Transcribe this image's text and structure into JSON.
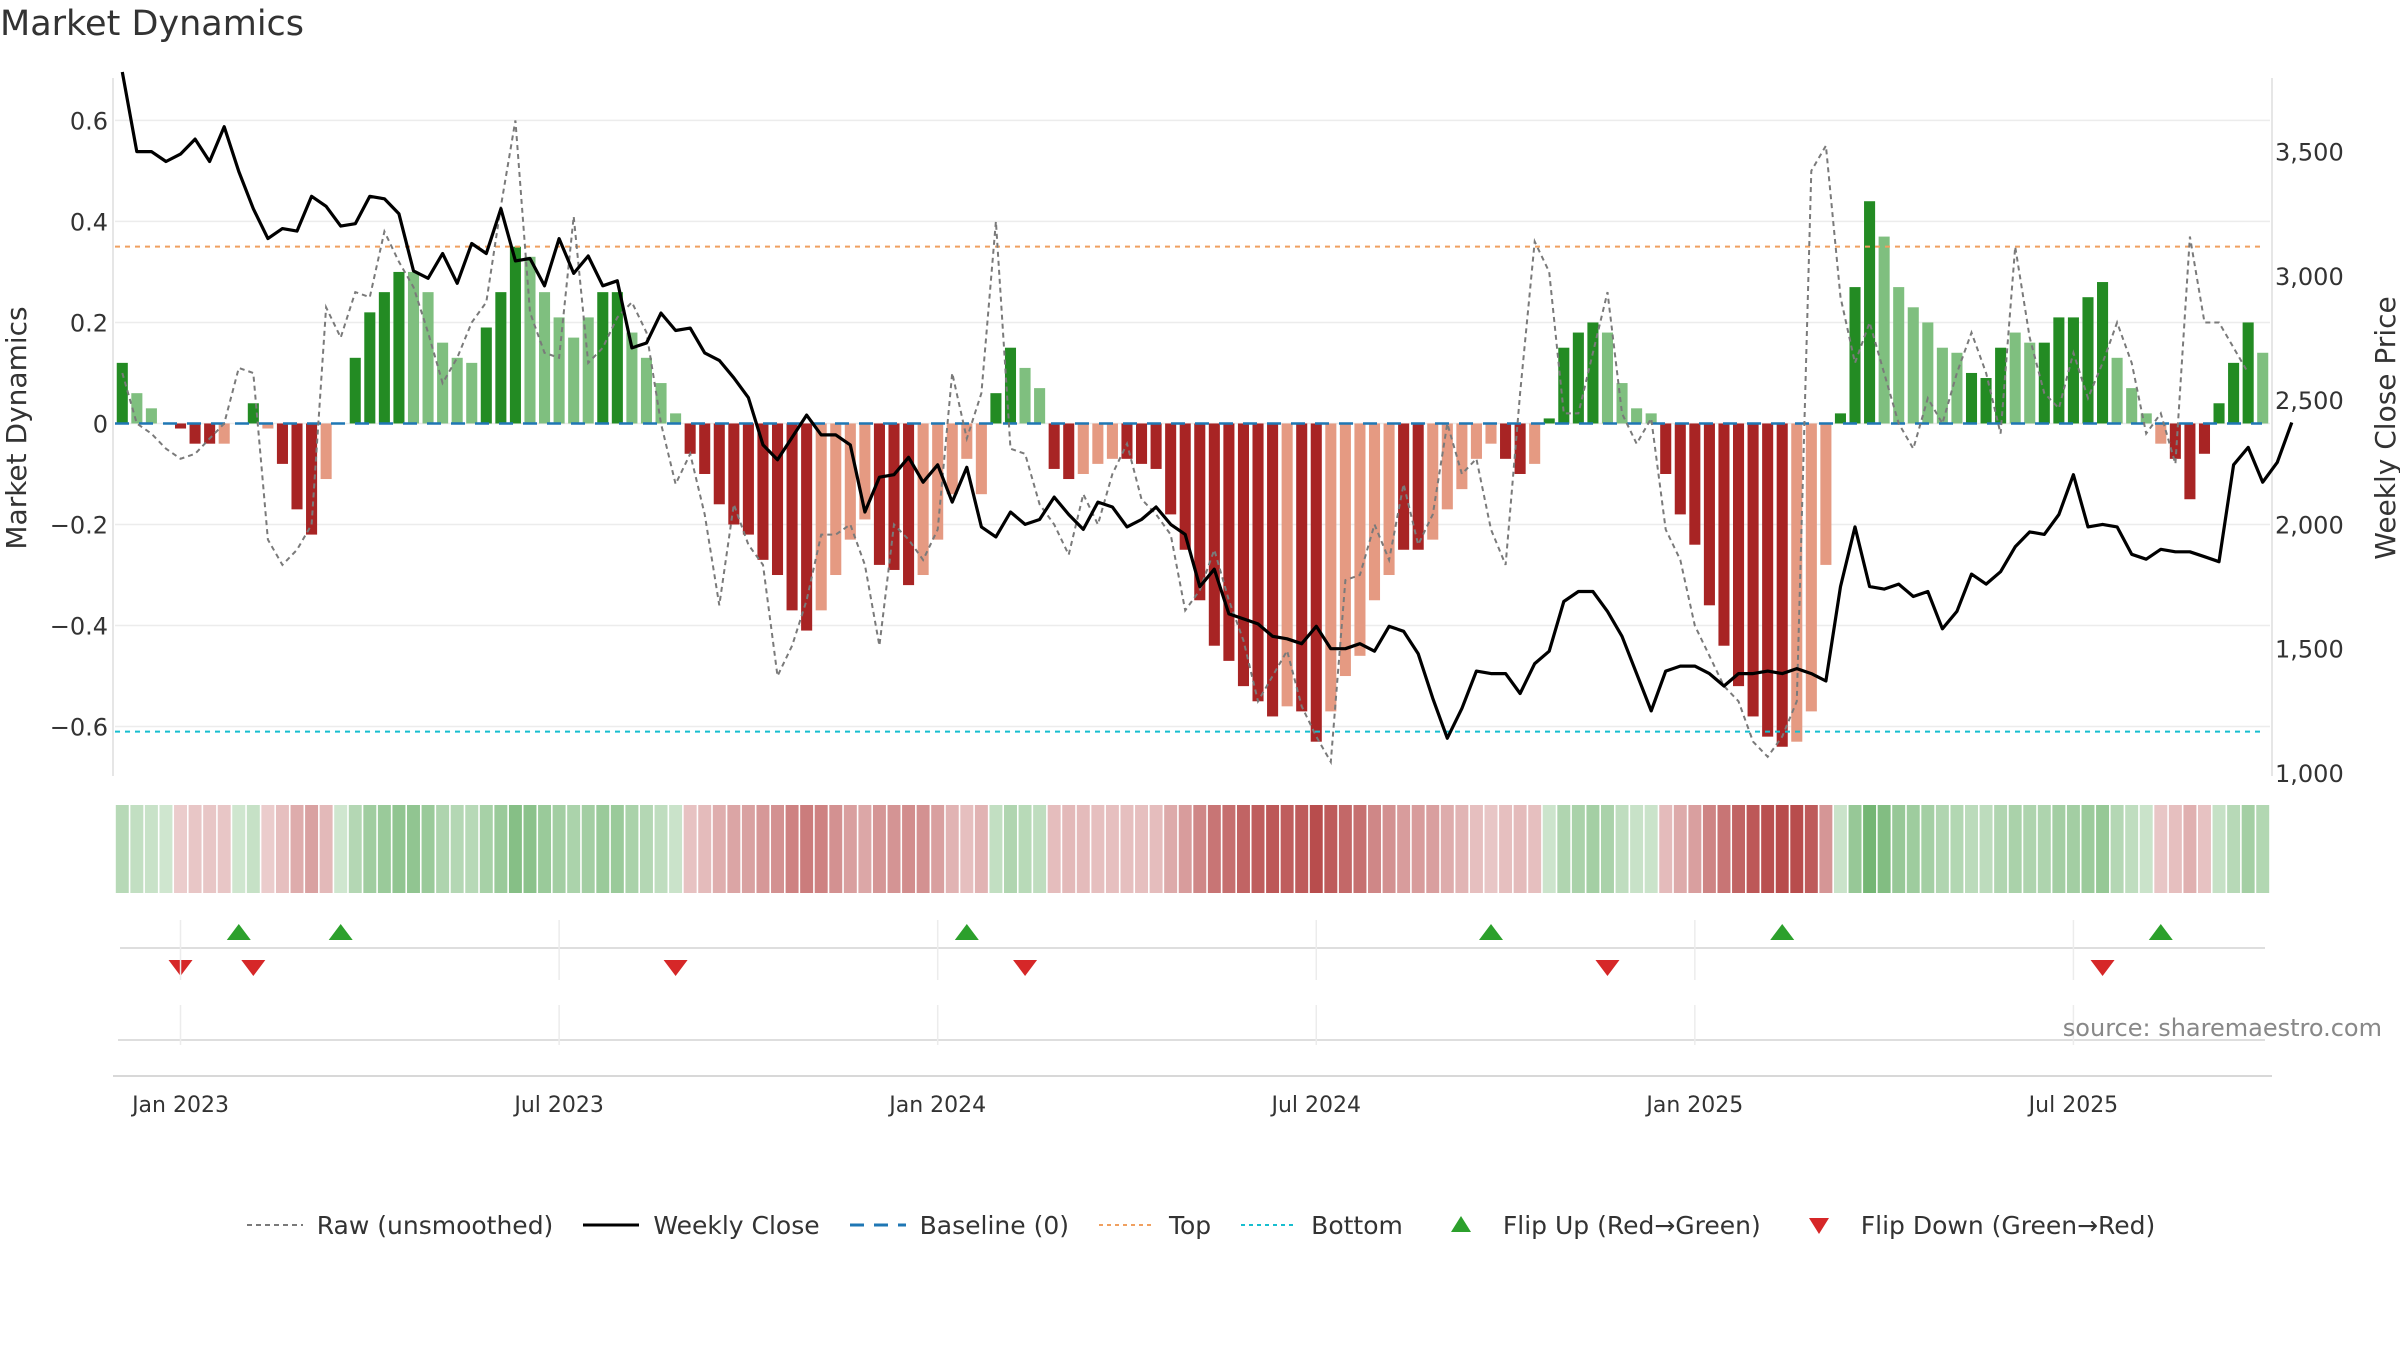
{
  "title": "Market Dynamics",
  "source_text": "source: sharemaestro.com",
  "colors": {
    "green_strong": "#238b23",
    "green_light": "#7fbf7f",
    "red_strong": "#a82424",
    "red_light": "#e59a82",
    "raw_line": "#7a7a7a",
    "close_line": "#000000",
    "baseline": "#1f77b4",
    "top": "#f0a060",
    "bottom": "#17becf",
    "flip_up": "#2ca02c",
    "flip_down": "#d62728"
  },
  "legend": [
    {
      "key": "raw",
      "label": "Raw (unsmoothed)"
    },
    {
      "key": "close",
      "label": "Weekly Close"
    },
    {
      "key": "baseline",
      "label": "Baseline (0)"
    },
    {
      "key": "top",
      "label": "Top"
    },
    {
      "key": "bottom",
      "label": "Bottom"
    },
    {
      "key": "flip_up",
      "label": "Flip Up (Red→Green)"
    },
    {
      "key": "flip_down",
      "label": "Flip Down (Green→Red)"
    }
  ],
  "chart_data": {
    "type": "bar",
    "ylabel_left": "Market Dynamics",
    "ylabel_right": "Weekly Close Price",
    "y_left_ticks": [
      0.6,
      0.4,
      0.2,
      0,
      -0.2,
      -0.4,
      -0.6
    ],
    "y_left_tick_labels": [
      "0.6",
      "0.4",
      "0.2",
      "0",
      "−0.2",
      "−0.4",
      "−0.6"
    ],
    "y_left_range": [
      -0.69,
      0.68
    ],
    "y_right_ticks": [
      3500,
      3000,
      2500,
      2000,
      1500,
      1000
    ],
    "y_right_tick_labels": [
      "3,500",
      "3,000",
      "2,500",
      "2,000",
      "1,500",
      "1,000"
    ],
    "y_right_range": [
      1000,
      3800
    ],
    "x_tick_labels": [
      "Jan 2023",
      "Jul 2023",
      "Jan 2024",
      "Jul 2024",
      "Jan 2025",
      "Jul 2025"
    ],
    "x_tick_weeks": [
      4,
      30,
      56,
      82,
      108,
      134
    ],
    "top_level": 0.35,
    "bottom_level": -0.61,
    "baseline": 0,
    "bar_values": [
      0.12,
      0.06,
      0.03,
      0,
      -0.01,
      -0.04,
      -0.04,
      -0.04,
      0,
      0.04,
      -0.01,
      -0.08,
      -0.17,
      -0.22,
      -0.11,
      0,
      0.13,
      0.22,
      0.26,
      0.3,
      0.3,
      0.26,
      0.16,
      0.13,
      0.12,
      0.19,
      0.26,
      0.35,
      0.33,
      0.26,
      0.21,
      0.17,
      0.21,
      0.26,
      0.26,
      0.18,
      0.13,
      0.08,
      0.02,
      -0.06,
      -0.1,
      -0.16,
      -0.2,
      -0.22,
      -0.27,
      -0.3,
      -0.37,
      -0.41,
      -0.37,
      -0.3,
      -0.23,
      -0.19,
      -0.28,
      -0.29,
      -0.32,
      -0.3,
      -0.23,
      -0.14,
      -0.07,
      -0.14,
      0.06,
      0.15,
      0.11,
      0.07,
      -0.09,
      -0.11,
      -0.1,
      -0.08,
      -0.07,
      -0.07,
      -0.08,
      -0.09,
      -0.18,
      -0.25,
      -0.35,
      -0.44,
      -0.47,
      -0.52,
      -0.55,
      -0.58,
      -0.56,
      -0.57,
      -0.63,
      -0.57,
      -0.5,
      -0.46,
      -0.35,
      -0.3,
      -0.25,
      -0.25,
      -0.23,
      -0.17,
      -0.13,
      -0.07,
      -0.04,
      -0.07,
      -0.1,
      -0.08,
      0.01,
      0.15,
      0.18,
      0.2,
      0.18,
      0.08,
      0.03,
      0.02,
      -0.1,
      -0.18,
      -0.24,
      -0.36,
      -0.44,
      -0.52,
      -0.58,
      -0.62,
      -0.64,
      -0.63,
      -0.57,
      -0.28,
      0.02,
      0.27,
      0.44,
      0.37,
      0.27,
      0.23,
      0.2,
      0.15,
      0.14,
      0.1,
      0.09,
      0.15,
      0.18,
      0.16,
      0.16,
      0.21,
      0.21,
      0.25,
      0.28,
      0.13,
      0.07,
      0.02,
      -0.04,
      -0.07,
      -0.15,
      -0.06,
      0.04,
      0.12,
      0.2,
      0.14
    ],
    "bar_intensity": [
      "strong",
      "light",
      "light",
      "light",
      "strong",
      "strong",
      "strong",
      "light",
      "strong",
      "strong",
      "light",
      "strong",
      "strong",
      "strong",
      "light",
      "light",
      "strong",
      "strong",
      "strong",
      "strong",
      "light",
      "light",
      "light",
      "light",
      "light",
      "strong",
      "strong",
      "strong",
      "light",
      "light",
      "light",
      "light",
      "light",
      "strong",
      "strong",
      "light",
      "light",
      "light",
      "light",
      "strong",
      "strong",
      "strong",
      "strong",
      "strong",
      "strong",
      "strong",
      "strong",
      "strong",
      "light",
      "light",
      "light",
      "light",
      "strong",
      "strong",
      "strong",
      "light",
      "light",
      "light",
      "light",
      "light",
      "strong",
      "strong",
      "light",
      "light",
      "strong",
      "strong",
      "light",
      "light",
      "light",
      "strong",
      "strong",
      "strong",
      "strong",
      "strong",
      "strong",
      "strong",
      "strong",
      "strong",
      "strong",
      "strong",
      "light",
      "strong",
      "strong",
      "light",
      "light",
      "light",
      "light",
      "light",
      "strong",
      "strong",
      "light",
      "light",
      "light",
      "light",
      "light",
      "strong",
      "strong",
      "light",
      "strong",
      "strong",
      "strong",
      "strong",
      "light",
      "light",
      "light",
      "light",
      "strong",
      "strong",
      "strong",
      "strong",
      "strong",
      "strong",
      "strong",
      "strong",
      "strong",
      "light",
      "light",
      "light",
      "strong",
      "strong",
      "strong",
      "light",
      "light",
      "light",
      "light",
      "light",
      "light",
      "strong",
      "strong",
      "strong",
      "light",
      "light",
      "strong",
      "strong",
      "strong",
      "strong",
      "strong",
      "light",
      "light",
      "light",
      "light",
      "strong",
      "strong",
      "strong",
      "strong",
      "strong",
      "strong",
      "light"
    ],
    "raw_values": [
      0.1,
      0.0,
      -0.02,
      -0.05,
      -0.07,
      -0.06,
      -0.03,
      0.0,
      0.11,
      0.1,
      -0.23,
      -0.28,
      -0.25,
      -0.2,
      0.23,
      0.17,
      0.26,
      0.25,
      0.38,
      0.32,
      0.27,
      0.18,
      0.08,
      0.13,
      0.2,
      0.24,
      0.43,
      0.6,
      0.22,
      0.14,
      0.13,
      0.41,
      0.12,
      0.15,
      0.21,
      0.24,
      0.18,
      0.0,
      -0.12,
      -0.06,
      -0.18,
      -0.36,
      -0.16,
      -0.24,
      -0.28,
      -0.5,
      -0.44,
      -0.35,
      -0.22,
      -0.22,
      -0.2,
      -0.28,
      -0.44,
      -0.2,
      -0.23,
      -0.27,
      -0.21,
      0.1,
      -0.03,
      0.06,
      0.4,
      -0.05,
      -0.06,
      -0.16,
      -0.2,
      -0.26,
      -0.14,
      -0.2,
      -0.1,
      -0.04,
      -0.15,
      -0.18,
      -0.22,
      -0.37,
      -0.33,
      -0.25,
      -0.35,
      -0.43,
      -0.55,
      -0.5,
      -0.45,
      -0.56,
      -0.62,
      -0.67,
      -0.31,
      -0.3,
      -0.2,
      -0.27,
      -0.12,
      -0.24,
      -0.18,
      0.0,
      -0.1,
      -0.07,
      -0.21,
      -0.28,
      0.06,
      0.36,
      0.3,
      0.02,
      0.02,
      0.14,
      0.26,
      0.02,
      -0.04,
      0.01,
      -0.21,
      -0.27,
      -0.4,
      -0.46,
      -0.52,
      -0.55,
      -0.63,
      -0.66,
      -0.62,
      -0.55,
      0.5,
      0.55,
      0.25,
      0.12,
      0.2,
      0.1,
      0.0,
      -0.05,
      0.05,
      0.0,
      0.1,
      0.18,
      0.1,
      -0.02,
      0.35,
      0.17,
      0.06,
      0.03,
      0.14,
      0.05,
      0.12,
      0.2,
      0.12,
      -0.02,
      0.02,
      -0.08,
      0.37,
      0.2,
      0.2,
      0.15,
      0.1
    ],
    "weekly_close": [
      3820,
      3500,
      3500,
      3460,
      3490,
      3550,
      3460,
      3600,
      3420,
      3270,
      3150,
      3190,
      3180,
      3320,
      3280,
      3200,
      3210,
      3320,
      3310,
      3250,
      3020,
      2990,
      3090,
      2970,
      3130,
      3090,
      3270,
      3060,
      3070,
      2960,
      3150,
      3010,
      3080,
      2960,
      2980,
      2710,
      2730,
      2850,
      2780,
      2790,
      2690,
      2660,
      2590,
      2510,
      2320,
      2260,
      2350,
      2440,
      2360,
      2360,
      2320,
      2050,
      2190,
      2200,
      2270,
      2170,
      2240,
      2090,
      2230,
      1990,
      1950,
      2050,
      2000,
      2020,
      2110,
      2040,
      1980,
      2090,
      2070,
      1990,
      2020,
      2070,
      2000,
      1960,
      1750,
      1820,
      1640,
      1620,
      1600,
      1550,
      1540,
      1520,
      1590,
      1500,
      1500,
      1520,
      1490,
      1590,
      1570,
      1480,
      1300,
      1140,
      1260,
      1410,
      1400,
      1400,
      1320,
      1440,
      1490,
      1690,
      1730,
      1730,
      1650,
      1550,
      1400,
      1250,
      1410,
      1430,
      1430,
      1400,
      1350,
      1400,
      1400,
      1410,
      1400,
      1420,
      1400,
      1370,
      1750,
      1990,
      1750,
      1740,
      1760,
      1710,
      1730,
      1580,
      1650,
      1800,
      1760,
      1810,
      1910,
      1970,
      1960,
      2040,
      2200,
      1990,
      2000,
      1990,
      1880,
      1860,
      1900,
      1890,
      1890,
      1870,
      1850,
      2240,
      2310,
      2170,
      2250,
      2410
    ],
    "flip_up_weeks": [
      8,
      15,
      58,
      94,
      114,
      140
    ],
    "flip_down_weeks": [
      4,
      9,
      38,
      62,
      102,
      136
    ]
  }
}
